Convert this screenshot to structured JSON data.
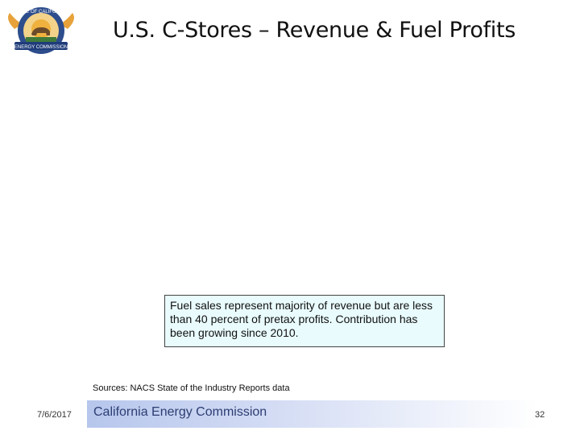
{
  "slide": {
    "title": "U.S. C-Stores – Revenue & Fuel Profits",
    "callout": "Fuel sales represent majority of revenue but are less than 40 percent of pretax profits. Contribution has been growing since 2010.",
    "sources": "Sources: NACS State of the Industry Reports data"
  },
  "logo": {
    "ring_text": "STATE OF CALIFORNIA",
    "banner_text": "ENERGY COMMISSION",
    "colors": {
      "ring": "#2d4d8c",
      "gold": "#e8a23a",
      "bear": "#6b4b2a",
      "banner": "#1f3c7a"
    }
  },
  "footer": {
    "date": "7/6/2017",
    "org": "California Energy Commission",
    "page": "32"
  }
}
